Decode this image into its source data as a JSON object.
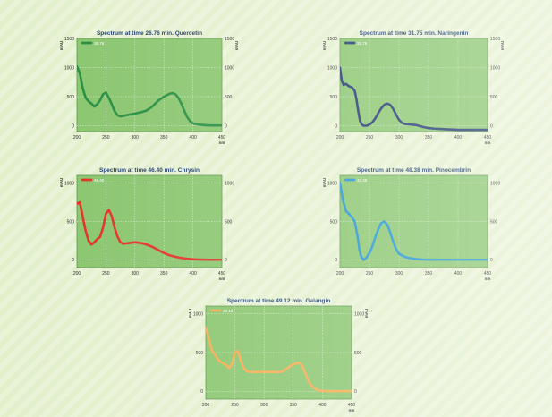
{
  "chart_data": [
    {
      "type": "line",
      "title": "Spectrum at time 26.76 min. Quercetin",
      "legend": "26.76",
      "color": "#1f8a3a",
      "xlabel": "nm",
      "ylabel_left": "mAU",
      "ylabel_right": "mAU",
      "xlim": [
        200,
        450
      ],
      "ylim": [
        -100,
        1500
      ],
      "x_ticks": [
        200,
        250,
        300,
        350,
        400,
        450
      ],
      "y_ticks": [
        0,
        500,
        1000,
        1500
      ],
      "x": [
        200,
        205,
        210,
        215,
        220,
        225,
        230,
        235,
        240,
        245,
        250,
        255,
        260,
        265,
        270,
        275,
        280,
        290,
        300,
        310,
        320,
        330,
        340,
        350,
        360,
        365,
        370,
        375,
        380,
        385,
        390,
        395,
        400,
        410,
        420,
        430,
        440,
        450
      ],
      "y": [
        1020,
        900,
        640,
        480,
        420,
        380,
        330,
        370,
        440,
        540,
        570,
        480,
        370,
        250,
        180,
        160,
        170,
        190,
        210,
        230,
        260,
        330,
        430,
        500,
        550,
        560,
        540,
        480,
        380,
        260,
        150,
        80,
        40,
        20,
        10,
        5,
        5,
        5
      ]
    },
    {
      "type": "line",
      "title": "Spectrum at time 31.75 min. Naringenin",
      "legend": "31.75",
      "color": "#17306a",
      "xlabel": "nm",
      "ylabel_left": "mAU",
      "ylabel_right": "mAU",
      "xlim": [
        200,
        450
      ],
      "ylim": [
        -100,
        1500
      ],
      "x_ticks": [
        200,
        250,
        300,
        350,
        400,
        450
      ],
      "y_ticks": [
        0,
        500,
        1000,
        1500
      ],
      "x": [
        200,
        203,
        206,
        210,
        215,
        220,
        225,
        228,
        231,
        234,
        237,
        240,
        245,
        250,
        255,
        260,
        265,
        270,
        275,
        280,
        285,
        290,
        295,
        300,
        305,
        310,
        320,
        330,
        340,
        350,
        360,
        380,
        400,
        420,
        450
      ],
      "y": [
        1000,
        780,
        700,
        720,
        680,
        660,
        600,
        450,
        250,
        80,
        20,
        0,
        0,
        20,
        60,
        130,
        220,
        300,
        360,
        380,
        360,
        290,
        190,
        100,
        50,
        30,
        20,
        10,
        -20,
        -40,
        -50,
        -60,
        -70,
        -70,
        -70
      ]
    },
    {
      "type": "line",
      "title": "Spectrum at time 46.40 min. Chrysin",
      "legend": "46.40",
      "color": "#e22a1f",
      "xlabel": "nm",
      "ylabel_left": "mAU",
      "ylabel_right": "",
      "xlim": [
        200,
        450
      ],
      "ylim": [
        -100,
        1100
      ],
      "x_ticks": [
        200,
        250,
        300,
        350,
        400,
        450
      ],
      "y_ticks": [
        0,
        500,
        1000
      ],
      "x": [
        200,
        205,
        210,
        215,
        220,
        225,
        230,
        235,
        240,
        245,
        250,
        255,
        260,
        265,
        270,
        275,
        280,
        290,
        300,
        310,
        320,
        330,
        340,
        350,
        360,
        370,
        380,
        390,
        400,
        410,
        420,
        430,
        440,
        450
      ],
      "y": [
        730,
        750,
        560,
        380,
        250,
        200,
        230,
        270,
        300,
        420,
        600,
        650,
        570,
        420,
        300,
        230,
        210,
        220,
        230,
        220,
        200,
        170,
        130,
        90,
        60,
        40,
        25,
        15,
        8,
        5,
        3,
        2,
        2,
        2
      ]
    },
    {
      "type": "line",
      "title": "Spectrum at time 48.38 min. Pinocembrin",
      "legend": "48.38",
      "color": "#1a90d0",
      "xlabel": "nm",
      "ylabel_left": "mAU",
      "ylabel_right": "",
      "xlim": [
        200,
        450
      ],
      "ylim": [
        -100,
        1100
      ],
      "x_ticks": [
        200,
        250,
        300,
        350,
        400,
        450
      ],
      "y_ticks": [
        0,
        500,
        1000
      ],
      "x": [
        200,
        205,
        210,
        215,
        220,
        225,
        230,
        233,
        236,
        240,
        245,
        250,
        255,
        260,
        265,
        270,
        275,
        280,
        285,
        290,
        295,
        300,
        310,
        320,
        330,
        340,
        350,
        370,
        400,
        450
      ],
      "y": [
        1000,
        780,
        640,
        600,
        560,
        500,
        300,
        130,
        40,
        0,
        30,
        90,
        180,
        300,
        400,
        480,
        500,
        460,
        360,
        240,
        140,
        80,
        40,
        20,
        10,
        5,
        3,
        2,
        2,
        2
      ]
    },
    {
      "type": "line",
      "title": "Spectrum at time 49.12 min. Galangin",
      "legend": "49.12",
      "color": "#f4a94a",
      "xlabel": "nm",
      "ylabel_left": "mAU",
      "ylabel_right": "mAU",
      "xlim": [
        200,
        450
      ],
      "ylim": [
        -100,
        1100
      ],
      "x_ticks": [
        200,
        250,
        300,
        350,
        400,
        450
      ],
      "y_ticks": [
        0,
        500,
        1000
      ],
      "x": [
        200,
        205,
        210,
        215,
        220,
        225,
        230,
        235,
        240,
        245,
        250,
        255,
        260,
        265,
        270,
        275,
        280,
        290,
        300,
        310,
        320,
        330,
        340,
        350,
        360,
        365,
        370,
        375,
        380,
        390,
        400,
        410,
        420,
        430,
        450
      ],
      "y": [
        820,
        680,
        540,
        480,
        420,
        380,
        360,
        340,
        300,
        350,
        500,
        520,
        400,
        300,
        260,
        250,
        250,
        250,
        250,
        250,
        250,
        250,
        300,
        350,
        370,
        330,
        250,
        150,
        80,
        20,
        5,
        2,
        2,
        2,
        2
      ]
    }
  ]
}
